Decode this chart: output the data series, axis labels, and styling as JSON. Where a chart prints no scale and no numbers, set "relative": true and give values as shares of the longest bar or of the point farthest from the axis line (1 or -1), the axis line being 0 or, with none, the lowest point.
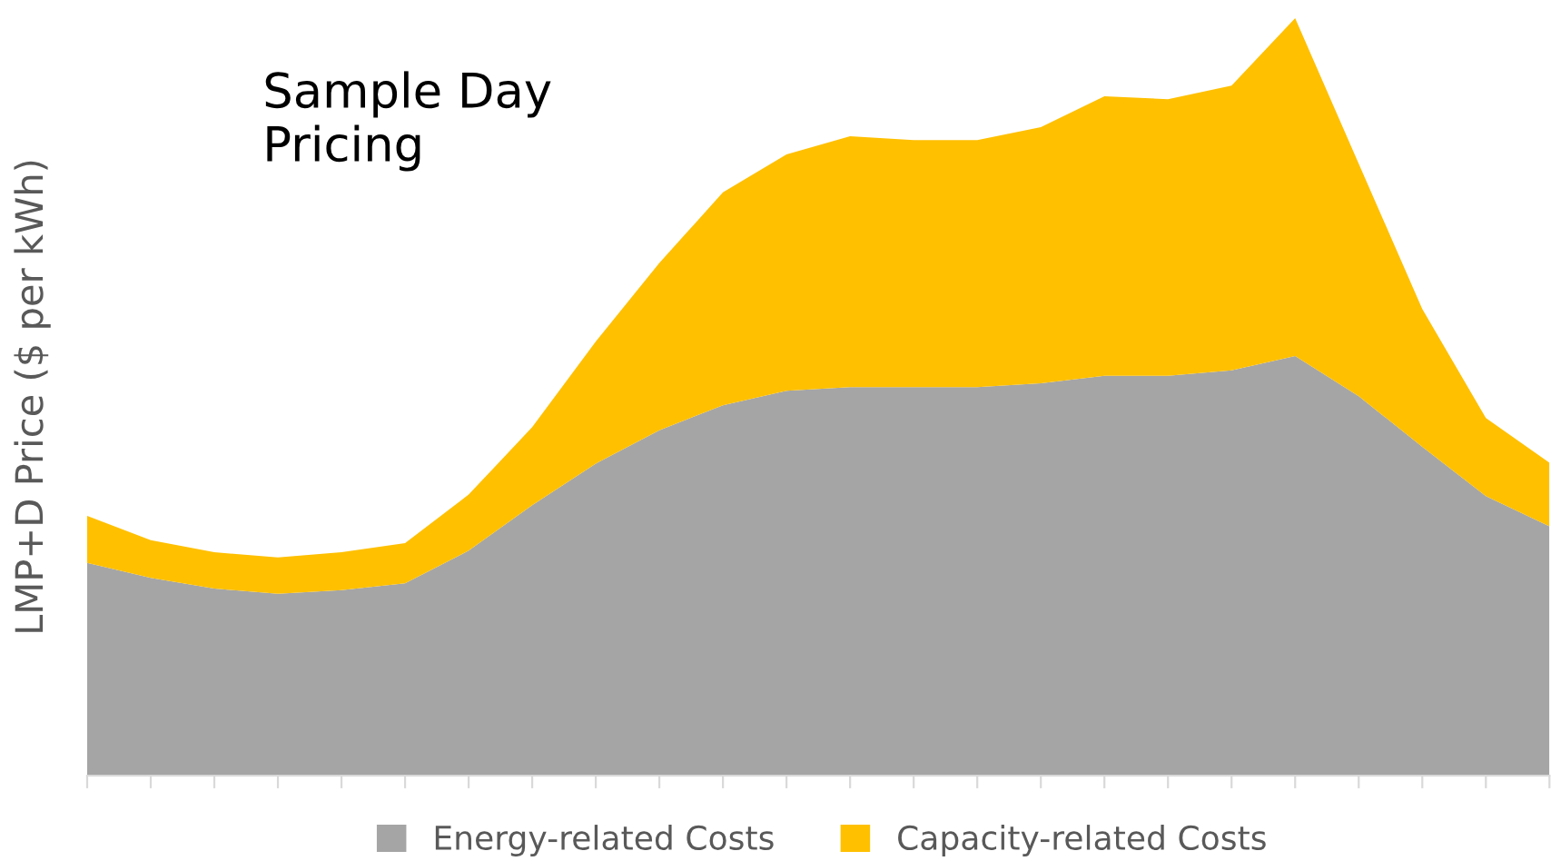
{
  "chart_data": {
    "type": "area",
    "title": "Sample Day\nPricing",
    "ylabel": "LMP+D Price ($ per kWh)",
    "relative": true,
    "stacked": true,
    "legend": "bottom",
    "grid": false,
    "categories": [
      null,
      null,
      null,
      null,
      null,
      null,
      null,
      null,
      null,
      null,
      null,
      null,
      null,
      null,
      null,
      null,
      null,
      null,
      null,
      null,
      null,
      null,
      null,
      null
    ],
    "series": [
      {
        "name": "Energy-related Costs",
        "color": "#a5a5a5",
        "values": [
          0.281,
          0.261,
          0.247,
          0.24,
          0.245,
          0.254,
          0.297,
          0.357,
          0.412,
          0.456,
          0.489,
          0.508,
          0.513,
          0.513,
          0.513,
          0.518,
          0.528,
          0.528,
          0.535,
          0.554,
          0.501,
          0.434,
          0.369,
          0.329
        ]
      },
      {
        "name": "Capacity-related Costs",
        "color": "#ffc000",
        "values": [
          0.062,
          0.05,
          0.048,
          0.048,
          0.05,
          0.053,
          0.074,
          0.103,
          0.161,
          0.221,
          0.281,
          0.312,
          0.331,
          0.326,
          0.326,
          0.338,
          0.369,
          0.365,
          0.376,
          0.446,
          0.307,
          0.182,
          0.103,
          0.084
        ]
      }
    ]
  }
}
